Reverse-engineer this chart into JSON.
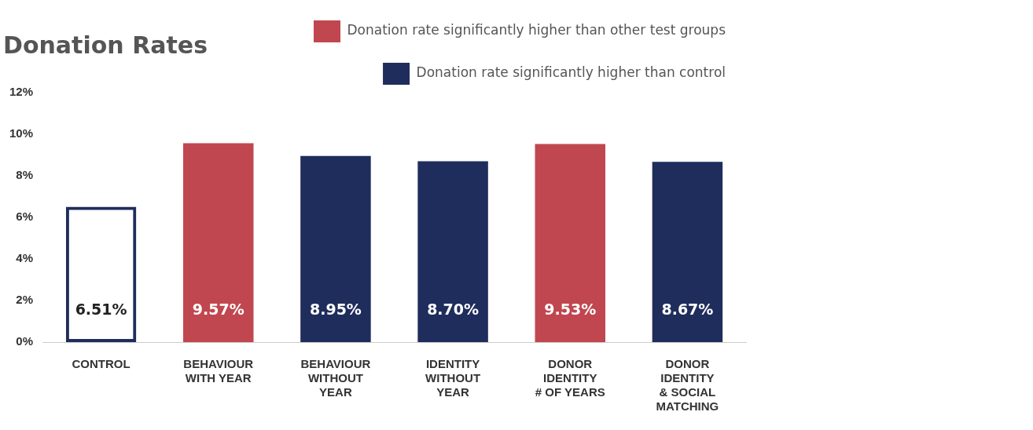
{
  "chart_data": {
    "type": "bar",
    "title": "Donation Rates",
    "categories": [
      "CONTROL",
      "BEHAVIOUR WITH YEAR",
      "BEHAVIOUR WITHOUT YEAR",
      "IDENTITY WITHOUT YEAR",
      "DONOR IDENTITY # OF YEARS",
      "DONOR IDENTITY & SOCIAL MATCHING"
    ],
    "series": [
      {
        "name": "Donation rate significantly higher than other test groups",
        "color": "#c0474f",
        "values": [
          null,
          9.57,
          null,
          null,
          9.53,
          null
        ],
        "value_labels": [
          null,
          "9.57%",
          null,
          null,
          "9.53%",
          null
        ]
      },
      {
        "name": "Donation rate significantly higher than control",
        "color": "#1f2d5c",
        "values": [
          null,
          null,
          8.95,
          8.7,
          null,
          8.67
        ],
        "value_labels": [
          null,
          null,
          "8.95%",
          "8.70%",
          null,
          "8.67%"
        ]
      },
      {
        "color": "#1f2d5c",
        "values": [
          6.51,
          null,
          null,
          null,
          null,
          null
        ],
        "value_labels": [
          "6.51%",
          null,
          null,
          null,
          null,
          null
        ]
      }
    ],
    "stacked": true,
    "ylim": [
      0,
      12
    ],
    "yticks": [
      {
        "value": 0,
        "label": "0%"
      },
      {
        "value": 2,
        "label": "2%"
      },
      {
        "value": 4,
        "label": "4%"
      },
      {
        "value": 6,
        "label": "6%"
      },
      {
        "value": 8,
        "label": "8%"
      },
      {
        "value": 10,
        "label": "10%"
      },
      {
        "value": 12,
        "label": "12%"
      }
    ],
    "grid": false,
    "legend": "top right"
  }
}
